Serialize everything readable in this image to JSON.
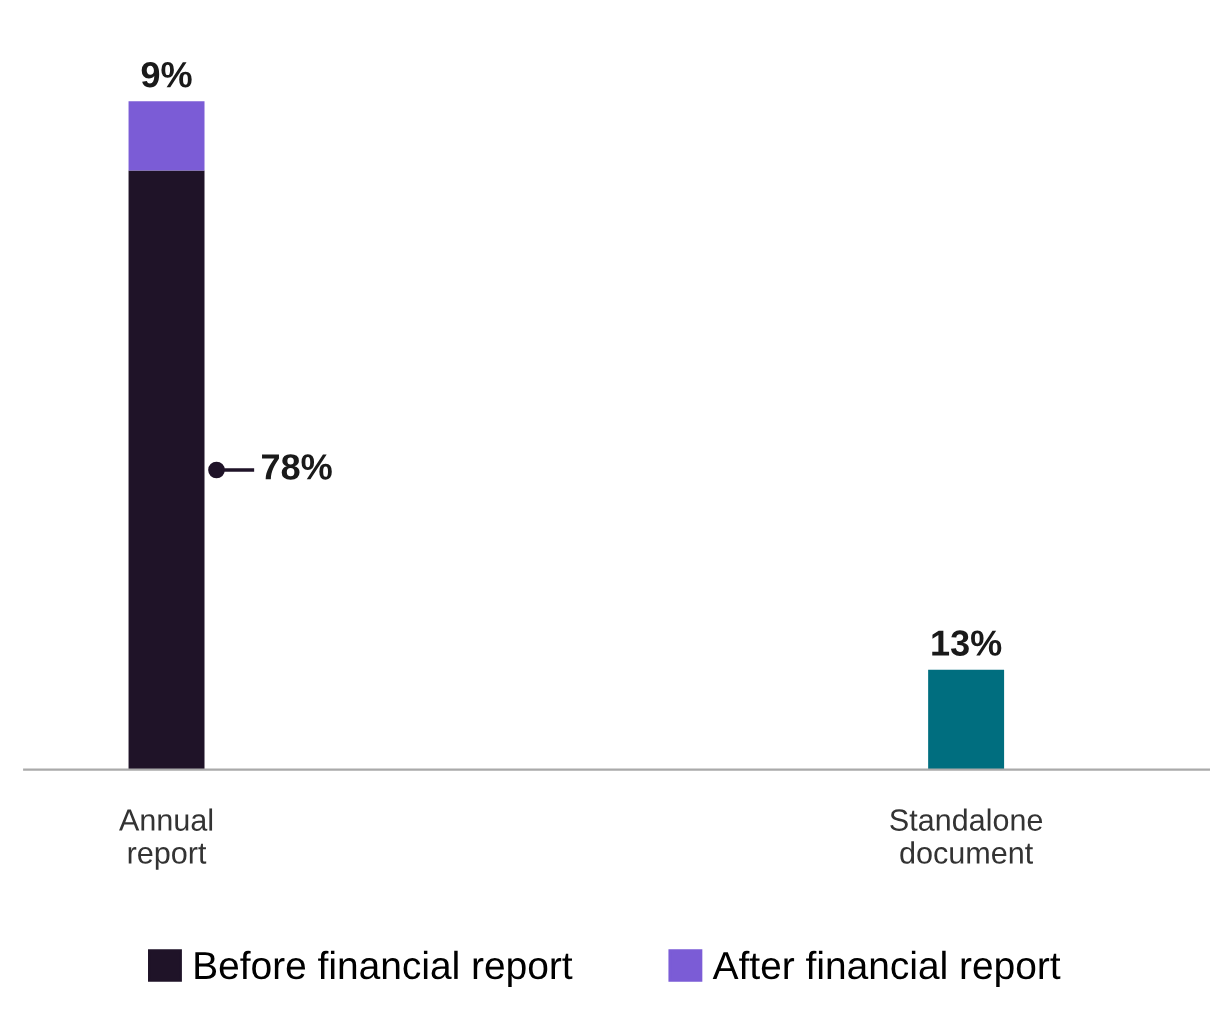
{
  "chart_data": {
    "type": "bar",
    "stacked": true,
    "categories": [
      "Annual report",
      "Standalone document"
    ],
    "series": [
      {
        "name": "Before financial report",
        "color": "#1f1328",
        "colors": [
          "#1f1328",
          "#006e7f"
        ],
        "values": [
          78,
          13
        ],
        "value_labels": [
          "78%",
          "13%"
        ]
      },
      {
        "name": "After financial report",
        "color": "#7b5cd6",
        "values": [
          9,
          null
        ],
        "value_labels": [
          "9%",
          null
        ]
      }
    ],
    "legend": "bottom",
    "grid": false
  }
}
